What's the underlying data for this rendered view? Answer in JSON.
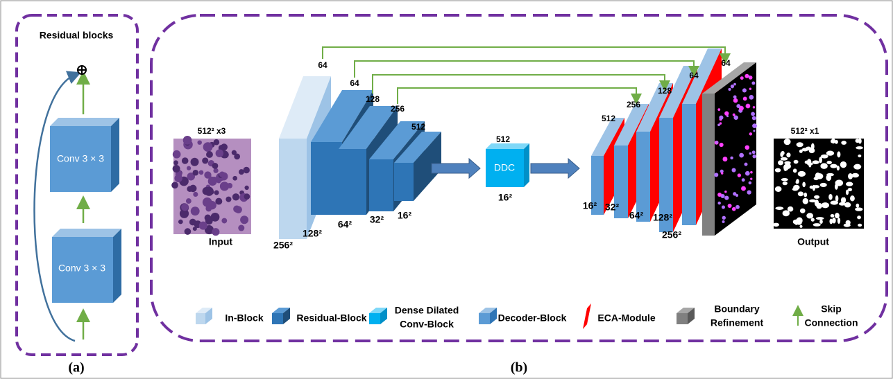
{
  "panel_a": {
    "title": "Residual blocks",
    "blocks": [
      "Conv 3 × 3",
      "Conv 3 × 3"
    ],
    "caption": "(a)"
  },
  "panel_b": {
    "caption": "(b)",
    "input": {
      "label": "Input",
      "size": "512² x3"
    },
    "output": {
      "label": "Output",
      "size": "512² x1"
    },
    "encoder": {
      "channels": [
        "64",
        "64",
        "128",
        "256",
        "512"
      ],
      "sizes": [
        "256²",
        "128²",
        "64²",
        "32²",
        "16²"
      ]
    },
    "bottleneck": {
      "label": "DDC",
      "channels": "512",
      "size": "16²"
    },
    "decoder": {
      "channels": [
        "512",
        "256",
        "128",
        "64",
        "64"
      ],
      "sizes": [
        "16²",
        "32²",
        "64²",
        "128²",
        "256²"
      ]
    },
    "legend": [
      [
        "In-Block"
      ],
      [
        "Residual-Block"
      ],
      [
        "Dense Dilated",
        "Conv-Block"
      ],
      [
        "Decoder-Block"
      ],
      [
        "ECA-Module"
      ],
      [
        "Boundary",
        "Refinement"
      ],
      [
        "Skip",
        "Connection"
      ]
    ]
  }
}
